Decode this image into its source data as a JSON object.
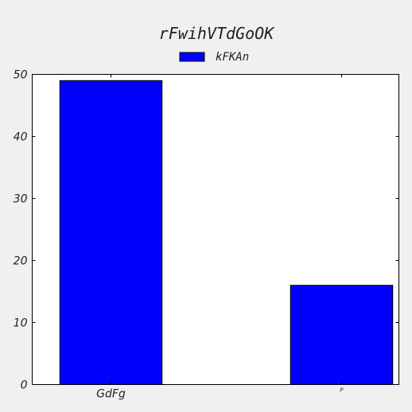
{
  "colors": {
    "background": "#f0f0f0",
    "plot_background": "#ffffff",
    "bar_fill": "#0000ff",
    "bar_stroke": "#000000",
    "axis": "#000000"
  },
  "chart_data": {
    "type": "bar",
    "title": "rFwihVTdGoOK",
    "xlabel": "",
    "ylabel": "",
    "categories": [
      "GdFg",
      "P"
    ],
    "series": [
      {
        "name": "kFKAn",
        "values": [
          49,
          16
        ],
        "color": "#0000ff"
      }
    ],
    "ylim": [
      0,
      50
    ],
    "yticks": [
      0,
      10,
      20,
      30,
      40,
      50
    ],
    "ytick_labels": [
      "0",
      "10",
      "20",
      "30",
      "40",
      "50"
    ],
    "grid": false,
    "legend_position": "top-center"
  }
}
